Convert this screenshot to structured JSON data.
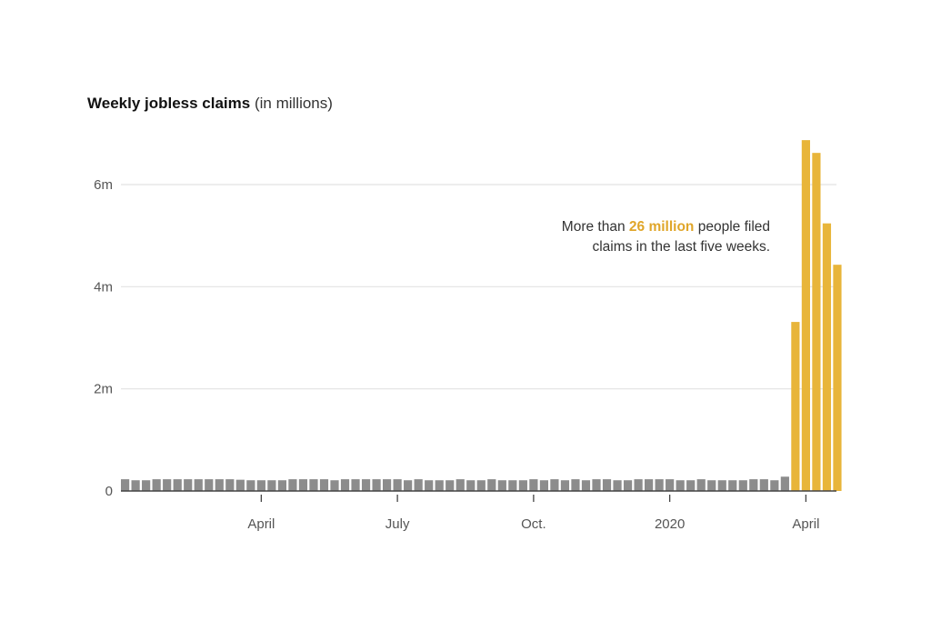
{
  "chart_data": {
    "type": "bar",
    "title": "Weekly jobless claims",
    "subtitle": "(in millions)",
    "ylim": [
      0,
      6
    ],
    "yticks": [
      {
        "value": 0,
        "label": "0"
      },
      {
        "value": 2,
        "label": "2m"
      },
      {
        "value": 4,
        "label": "4m"
      },
      {
        "value": 6,
        "label": "6m"
      }
    ],
    "xticks": [
      {
        "week_index": 13,
        "label": "April"
      },
      {
        "week_index": 26,
        "label": "July"
      },
      {
        "week_index": 39,
        "label": "Oct."
      },
      {
        "week_index": 52,
        "label": "2020"
      },
      {
        "week_index": 65,
        "label": "April"
      }
    ],
    "series": [
      {
        "highlight": false,
        "color": "#8c8c8c",
        "values": [
          0.23,
          0.21,
          0.21,
          0.23,
          0.23,
          0.23,
          0.23,
          0.23,
          0.23,
          0.23,
          0.23,
          0.22,
          0.21,
          0.21,
          0.21,
          0.21,
          0.23,
          0.23,
          0.23,
          0.23,
          0.21,
          0.23,
          0.23,
          0.23,
          0.23,
          0.23,
          0.23,
          0.21,
          0.23,
          0.21,
          0.21,
          0.21,
          0.23,
          0.21,
          0.21,
          0.23,
          0.21,
          0.21,
          0.21,
          0.23,
          0.21,
          0.23,
          0.21,
          0.23,
          0.21,
          0.23,
          0.23,
          0.21,
          0.21,
          0.23,
          0.23,
          0.23,
          0.23,
          0.21,
          0.21,
          0.23,
          0.21,
          0.21,
          0.21,
          0.21,
          0.23,
          0.23,
          0.21,
          0.28
        ]
      },
      {
        "highlight": true,
        "color": "#e8b53a",
        "values": [
          3.31,
          6.87,
          6.62,
          5.24,
          4.43
        ]
      }
    ],
    "annotation": {
      "prefix": "More than ",
      "highlight": "26 million",
      "suffix": " people filed",
      "line2": "claims in the last five weeks."
    }
  }
}
